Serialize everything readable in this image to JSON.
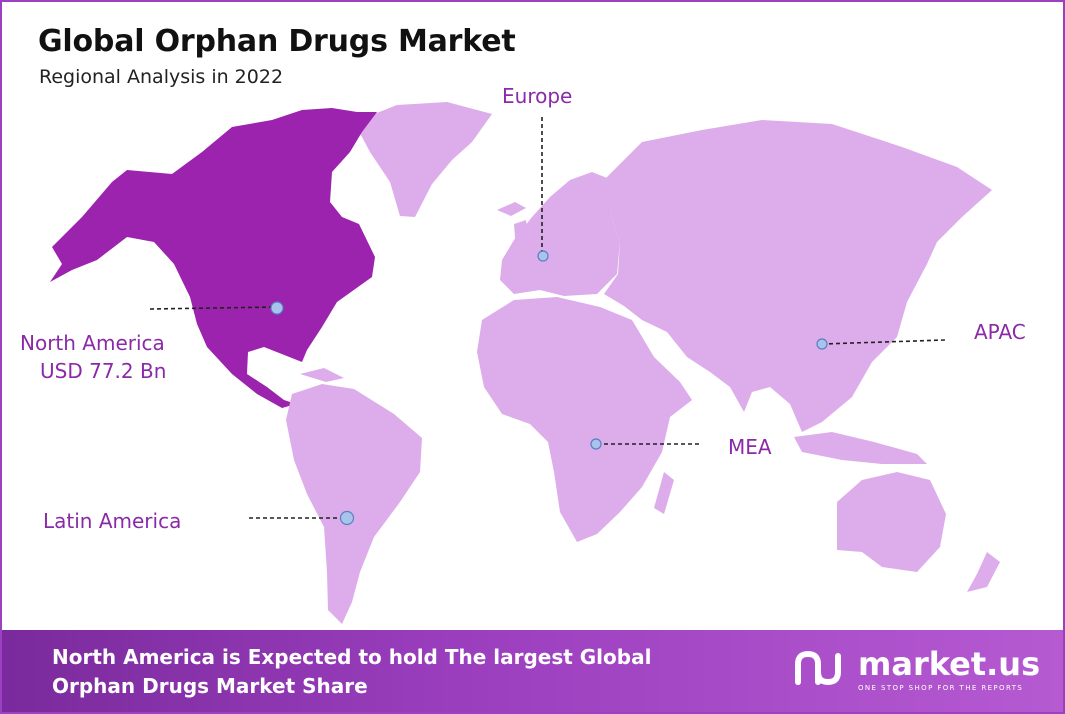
{
  "header": {
    "title": "Global Orphan Drugs Market",
    "subtitle": "Regional Analysis in 2022"
  },
  "regions": {
    "north_america": {
      "label": "North America",
      "value": "USD 77.2 Bn"
    },
    "europe": {
      "label": "Europe"
    },
    "apac": {
      "label": "APAC"
    },
    "mea": {
      "label": "MEA"
    },
    "latin_america": {
      "label": "Latin America"
    }
  },
  "banner": {
    "line1": "North America is Expected to hold The largest Global",
    "line2": "Orphan Drugs Market Share"
  },
  "brand": {
    "name": "market.us",
    "tagline": "ONE STOP SHOP FOR THE REPORTS",
    "icon": "market-us-logo-icon"
  },
  "colors": {
    "highlight_region": "#9b23ad",
    "other_regions": "#ddacea",
    "label_text": "#8b2aa8",
    "marker": "#a9c4ec"
  }
}
